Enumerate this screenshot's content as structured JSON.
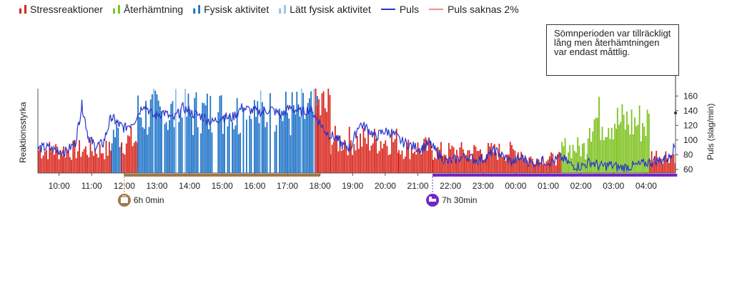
{
  "legend": {
    "stress": "Stressreaktioner",
    "recovery": "Återhämtning",
    "physical": "Fysisk aktivitet",
    "light": "Lätt fysisk aktivitet",
    "pulse": "Puls",
    "missing": "Puls saknas 2%"
  },
  "colors": {
    "stress": "#d9261c",
    "recovery": "#7dc21e",
    "physical": "#1f73c7",
    "light": "#8ec2ec",
    "pulse": "#2a35c9",
    "missing": "#f0908a",
    "work": "#a0784a",
    "sleep": "#7326c4"
  },
  "tooltip": {
    "text": "Sömnperioden var tillräckligt lång men återhämtningen var endast måttlig."
  },
  "periods": {
    "work_label": "6h 0min",
    "sleep_label": "7h 30min",
    "work_icon": "briefcase-icon",
    "sleep_icon": "bed-icon"
  },
  "chart_data": {
    "type": "bar",
    "ylabel_left": "Reaktionsstyrka",
    "ylabel_right": "Puls (slag/min)",
    "x_ticks": [
      "10:00",
      "11:00",
      "12:00",
      "13:00",
      "14:00",
      "15:00",
      "16:00",
      "17:00",
      "18:00",
      "19:00",
      "20:00",
      "21:00",
      "22:00",
      "23:00",
      "00:00",
      "01:00",
      "02:00",
      "03:00",
      "04:00"
    ],
    "y_right_ticks": [
      160,
      140,
      120,
      100,
      80,
      60
    ],
    "y_right_range": [
      55,
      170
    ],
    "x_range_hours": [
      9.35,
      28.9
    ],
    "periods": [
      {
        "name": "work",
        "start": 12.0,
        "end": 18.0
      },
      {
        "name": "sleep",
        "start": 21.45,
        "end": 28.95
      }
    ],
    "segments": [
      {
        "start": 9.35,
        "end": 11.6,
        "kind": "stress",
        "level": 0.32
      },
      {
        "start": 11.6,
        "end": 11.9,
        "kind": "physical",
        "level": 0.55
      },
      {
        "start": 11.9,
        "end": 12.4,
        "kind": "stress",
        "level": 0.45
      },
      {
        "start": 12.4,
        "end": 18.0,
        "kind": "physical",
        "level": 0.82
      },
      {
        "start": 17.85,
        "end": 18.3,
        "kind": "stress",
        "level": 0.9
      },
      {
        "start": 18.3,
        "end": 20.4,
        "kind": "stress",
        "level": 0.45
      },
      {
        "start": 20.4,
        "end": 21.45,
        "kind": "stress",
        "level": 0.35
      },
      {
        "start": 21.45,
        "end": 24.2,
        "kind": "stress",
        "level": 0.3
      },
      {
        "start": 24.2,
        "end": 25.4,
        "kind": "stress",
        "level": 0.2
      },
      {
        "start": 25.4,
        "end": 26.2,
        "kind": "recovery",
        "level": 0.35
      },
      {
        "start": 26.2,
        "end": 27.1,
        "kind": "recovery",
        "level": 0.75
      },
      {
        "start": 27.1,
        "end": 28.1,
        "kind": "recovery",
        "level": 0.7
      },
      {
        "start": 28.1,
        "end": 28.9,
        "kind": "stress",
        "level": 0.25
      }
    ],
    "pulse_points": [
      [
        9.35,
        88
      ],
      [
        9.6,
        90
      ],
      [
        9.9,
        86
      ],
      [
        10.2,
        84
      ],
      [
        10.5,
        96
      ],
      [
        10.7,
        148
      ],
      [
        10.9,
        104
      ],
      [
        11.1,
        92
      ],
      [
        11.35,
        95
      ],
      [
        11.6,
        132
      ],
      [
        11.8,
        122
      ],
      [
        12.0,
        116
      ],
      [
        12.3,
        126
      ],
      [
        12.6,
        150
      ],
      [
        12.9,
        132
      ],
      [
        13.2,
        138
      ],
      [
        13.5,
        128
      ],
      [
        13.8,
        144
      ],
      [
        14.1,
        136
      ],
      [
        14.4,
        132
      ],
      [
        14.7,
        124
      ],
      [
        15.0,
        132
      ],
      [
        15.3,
        130
      ],
      [
        15.6,
        144
      ],
      [
        15.9,
        140
      ],
      [
        16.2,
        138
      ],
      [
        16.5,
        142
      ],
      [
        16.8,
        134
      ],
      [
        17.1,
        144
      ],
      [
        17.4,
        138
      ],
      [
        17.7,
        142
      ],
      [
        17.95,
        126
      ],
      [
        18.2,
        110
      ],
      [
        18.5,
        102
      ],
      [
        18.7,
        92
      ],
      [
        18.95,
        90
      ],
      [
        19.2,
        122
      ],
      [
        19.45,
        116
      ],
      [
        19.7,
        104
      ],
      [
        19.95,
        112
      ],
      [
        20.2,
        110
      ],
      [
        20.5,
        98
      ],
      [
        20.8,
        92
      ],
      [
        21.1,
        88
      ],
      [
        21.35,
        96
      ],
      [
        21.6,
        82
      ],
      [
        21.9,
        70
      ],
      [
        22.2,
        74
      ],
      [
        22.5,
        78
      ],
      [
        22.8,
        72
      ],
      [
        23.1,
        76
      ],
      [
        23.35,
        86
      ],
      [
        23.6,
        78
      ],
      [
        23.9,
        70
      ],
      [
        24.2,
        76
      ],
      [
        24.5,
        68
      ],
      [
        24.8,
        72
      ],
      [
        25.1,
        70
      ],
      [
        25.4,
        76
      ],
      [
        25.7,
        66
      ],
      [
        26.0,
        64
      ],
      [
        26.3,
        70
      ],
      [
        26.6,
        64
      ],
      [
        26.9,
        66
      ],
      [
        27.2,
        62
      ],
      [
        27.5,
        64
      ],
      [
        27.8,
        66
      ],
      [
        28.1,
        70
      ],
      [
        28.4,
        72
      ],
      [
        28.7,
        76
      ],
      [
        28.9,
        94
      ]
    ]
  }
}
